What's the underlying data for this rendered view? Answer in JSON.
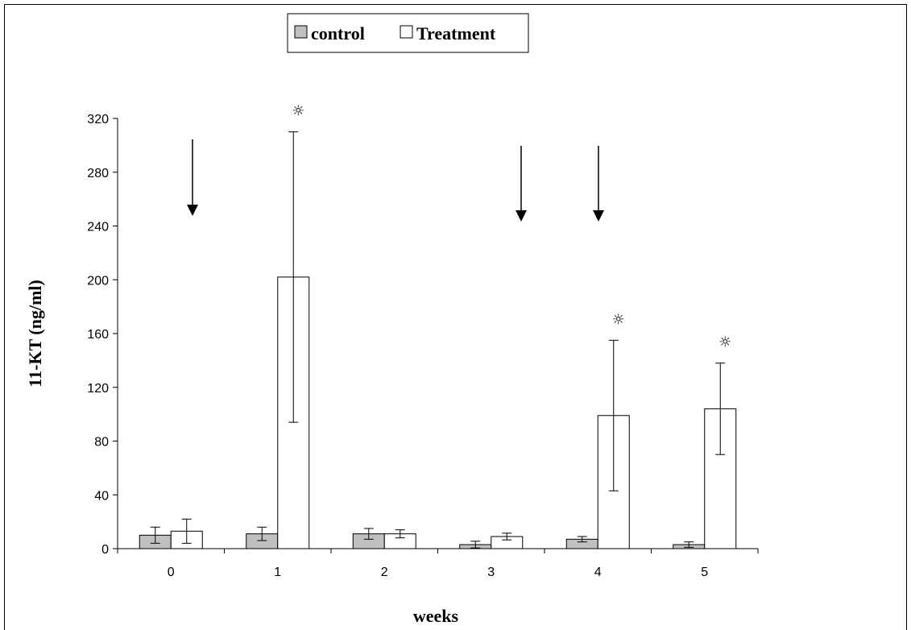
{
  "chart_data": {
    "type": "bar",
    "title": "",
    "xlabel": "weeks",
    "ylabel": "11-KT (ng/ml)",
    "ylim": [
      0,
      320
    ],
    "yticks": [
      0,
      40,
      80,
      120,
      160,
      200,
      240,
      280,
      320
    ],
    "categories": [
      "0",
      "1",
      "2",
      "3",
      "4",
      "5"
    ],
    "series": [
      {
        "name": "control",
        "color": "#c0c0c0",
        "values": [
          10,
          11,
          11,
          3,
          7,
          3
        ],
        "error": [
          6,
          5,
          4,
          2.5,
          2,
          2
        ]
      },
      {
        "name": "Treatment",
        "color": "#ffffff",
        "values": [
          13,
          202,
          11,
          9,
          99,
          104
        ],
        "error": [
          9,
          108,
          3,
          2.5,
          56,
          34
        ]
      }
    ],
    "significance": {
      "symbol": "☼",
      "categories": [
        "1",
        "4",
        "5"
      ],
      "series": "Treatment"
    },
    "treatment_arrows": [
      "0",
      "3",
      "4"
    ],
    "legend_position": "top-left",
    "grid": false
  }
}
